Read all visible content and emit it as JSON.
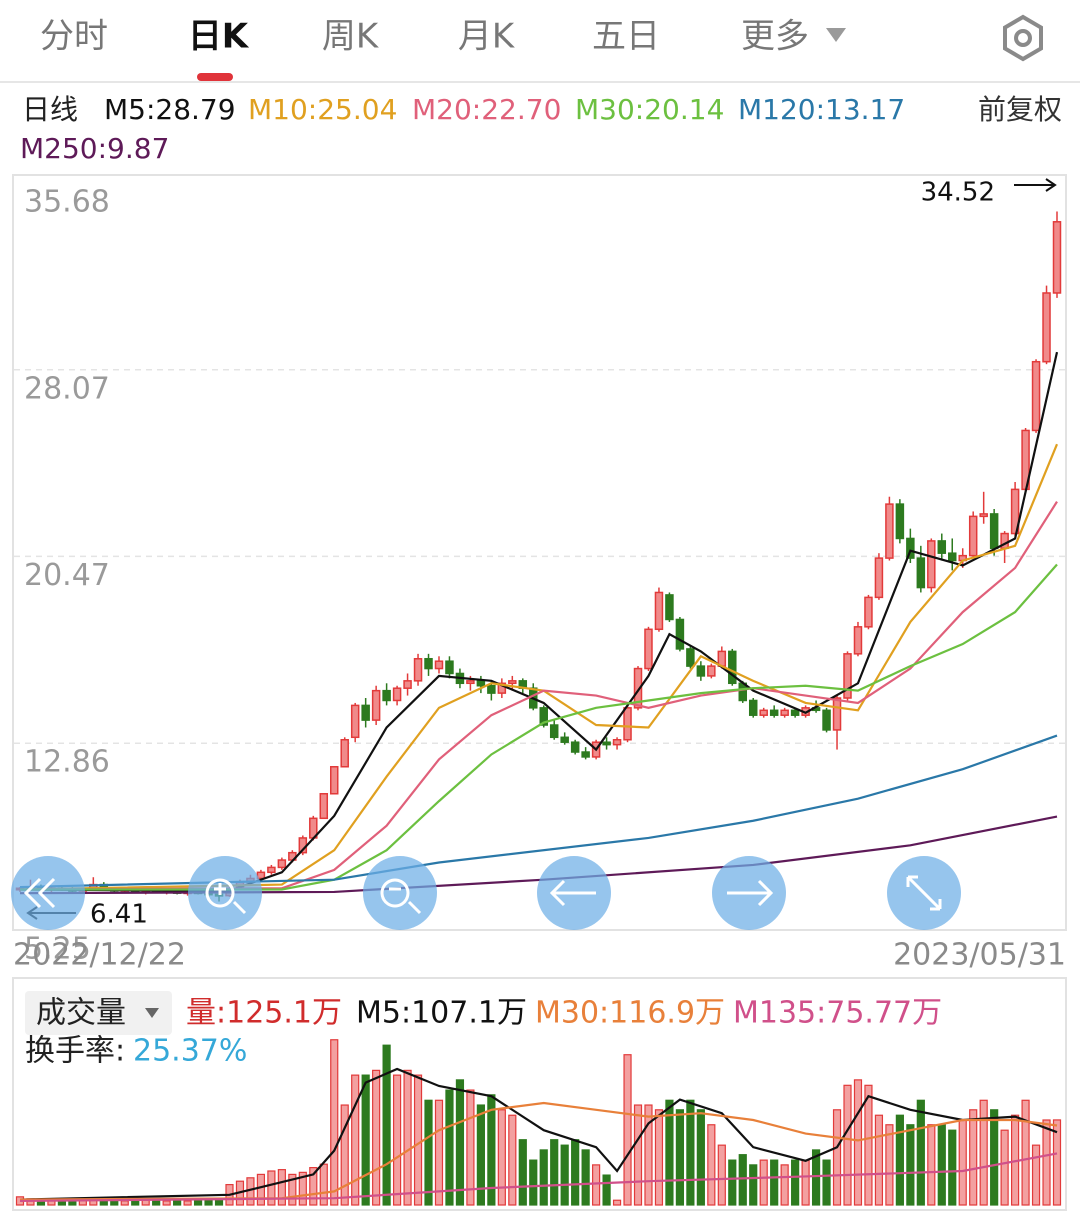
{
  "tabs": [
    "分时",
    "日K",
    "周K",
    "月K",
    "五日",
    "更多"
  ],
  "active_tab": 1,
  "chart_data": [
    {
      "type": "candlestick",
      "title": "日线",
      "adjustment": "前复权",
      "ylim": [
        5.25,
        35.68
      ],
      "yticks": [
        5.25,
        12.86,
        20.47,
        28.07,
        35.68
      ],
      "grid": true,
      "up_color": "#e23a3a",
      "down_color": "#2d7a1f",
      "date_labels": [
        "2022/12/22",
        "2023/05/31"
      ],
      "ohlc": [
        [
          6.9,
          7.0,
          6.8,
          6.95
        ],
        [
          6.95,
          7.3,
          6.9,
          7.0
        ],
        [
          7.0,
          7.1,
          6.85,
          6.9
        ],
        [
          6.9,
          7.0,
          6.8,
          6.95
        ],
        [
          6.95,
          7.05,
          6.85,
          6.9
        ],
        [
          6.9,
          7.0,
          6.8,
          6.85
        ],
        [
          6.85,
          6.95,
          6.75,
          6.9
        ],
        [
          6.9,
          7.4,
          6.85,
          7.1
        ],
        [
          7.1,
          7.2,
          6.9,
          6.95
        ],
        [
          6.95,
          7.0,
          6.8,
          6.85
        ],
        [
          6.85,
          6.95,
          6.75,
          6.9
        ],
        [
          6.9,
          7.0,
          6.8,
          6.8
        ],
        [
          6.8,
          6.9,
          6.7,
          6.85
        ],
        [
          6.85,
          6.95,
          6.75,
          6.8
        ],
        [
          6.8,
          6.9,
          6.7,
          6.85
        ],
        [
          6.85,
          6.9,
          6.7,
          6.75
        ],
        [
          6.75,
          6.85,
          6.65,
          6.8
        ],
        [
          6.8,
          6.9,
          6.7,
          6.75
        ],
        [
          6.75,
          6.85,
          6.6,
          6.7
        ],
        [
          6.7,
          6.8,
          6.41,
          6.65
        ],
        [
          6.65,
          7.0,
          6.6,
          6.95
        ],
        [
          6.95,
          7.3,
          6.9,
          7.2
        ],
        [
          7.2,
          7.5,
          7.1,
          7.35
        ],
        [
          7.35,
          7.7,
          7.3,
          7.6
        ],
        [
          7.6,
          7.9,
          7.5,
          7.8
        ],
        [
          7.8,
          8.2,
          7.7,
          8.1
        ],
        [
          8.1,
          8.5,
          8.0,
          8.4
        ],
        [
          8.4,
          9.1,
          8.3,
          9.0
        ],
        [
          9.0,
          9.9,
          8.9,
          9.8
        ],
        [
          9.8,
          10.8,
          9.8,
          10.8
        ],
        [
          10.8,
          11.9,
          10.8,
          11.9
        ],
        [
          11.9,
          13.1,
          11.9,
          13.0
        ],
        [
          13.1,
          14.5,
          12.9,
          14.4
        ],
        [
          14.4,
          14.7,
          13.5,
          13.8
        ],
        [
          13.8,
          15.2,
          13.6,
          15.0
        ],
        [
          15.0,
          15.3,
          14.4,
          14.6
        ],
        [
          14.6,
          15.2,
          14.4,
          15.1
        ],
        [
          15.1,
          15.7,
          14.8,
          15.4
        ],
        [
          15.4,
          16.5,
          15.2,
          16.3
        ],
        [
          16.3,
          16.5,
          15.6,
          15.9
        ],
        [
          15.9,
          16.4,
          15.7,
          16.2
        ],
        [
          16.2,
          16.4,
          15.5,
          15.7
        ],
        [
          15.7,
          15.9,
          15.1,
          15.3
        ],
        [
          15.3,
          15.6,
          15.0,
          15.4
        ],
        [
          15.4,
          15.6,
          14.9,
          15.2
        ],
        [
          15.2,
          15.4,
          14.6,
          14.9
        ],
        [
          14.9,
          15.5,
          14.7,
          15.3
        ],
        [
          15.3,
          15.6,
          15.0,
          15.4
        ],
        [
          15.4,
          15.5,
          14.9,
          15.1
        ],
        [
          15.1,
          15.3,
          14.2,
          14.3
        ],
        [
          14.3,
          14.4,
          13.5,
          13.6
        ],
        [
          13.6,
          13.8,
          13.0,
          13.1
        ],
        [
          13.1,
          13.3,
          12.8,
          12.9
        ],
        [
          12.9,
          13.0,
          12.4,
          12.5
        ],
        [
          12.5,
          12.7,
          12.2,
          12.3
        ],
        [
          12.3,
          13.0,
          12.2,
          12.9
        ],
        [
          12.9,
          13.1,
          12.6,
          12.8
        ],
        [
          12.8,
          13.1,
          12.6,
          13.0
        ],
        [
          13.0,
          14.4,
          12.9,
          14.3
        ],
        [
          14.3,
          16.0,
          14.2,
          15.9
        ],
        [
          15.9,
          17.6,
          15.8,
          17.5
        ],
        [
          17.5,
          19.2,
          17.4,
          19.0
        ],
        [
          18.9,
          19.0,
          17.8,
          17.9
        ],
        [
          17.9,
          18.0,
          16.6,
          16.7
        ],
        [
          16.7,
          16.8,
          15.9,
          16.0
        ],
        [
          16.0,
          16.2,
          15.4,
          15.6
        ],
        [
          15.6,
          16.1,
          15.5,
          16.0
        ],
        [
          16.0,
          16.8,
          15.9,
          16.6
        ],
        [
          16.6,
          16.7,
          15.2,
          15.3
        ],
        [
          15.3,
          15.4,
          14.5,
          14.6
        ],
        [
          14.6,
          14.7,
          13.9,
          14.0
        ],
        [
          14.0,
          14.3,
          13.9,
          14.2
        ],
        [
          14.2,
          14.4,
          13.9,
          14.0
        ],
        [
          14.0,
          14.3,
          13.9,
          14.2
        ],
        [
          14.2,
          14.3,
          13.9,
          14.0
        ],
        [
          14.0,
          14.4,
          13.9,
          14.3
        ],
        [
          14.3,
          14.6,
          14.1,
          14.2
        ],
        [
          14.2,
          14.3,
          13.3,
          13.4
        ],
        [
          13.4,
          14.8,
          12.6,
          14.7
        ],
        [
          14.7,
          16.6,
          14.6,
          16.5
        ],
        [
          16.5,
          17.8,
          16.4,
          17.6
        ],
        [
          17.6,
          18.9,
          17.5,
          18.8
        ],
        [
          18.8,
          20.6,
          18.7,
          20.4
        ],
        [
          20.4,
          22.9,
          20.3,
          22.6
        ],
        [
          22.6,
          22.8,
          21.0,
          21.2
        ],
        [
          21.2,
          21.6,
          20.2,
          20.4
        ],
        [
          20.4,
          20.9,
          19.0,
          19.2
        ],
        [
          19.2,
          21.2,
          19.0,
          21.1
        ],
        [
          21.1,
          21.4,
          20.3,
          20.6
        ],
        [
          20.6,
          21.2,
          19.9,
          20.3
        ],
        [
          20.3,
          20.8,
          20.0,
          20.5
        ],
        [
          20.5,
          22.3,
          20.4,
          22.1
        ],
        [
          22.1,
          23.1,
          21.8,
          22.2
        ],
        [
          22.2,
          22.4,
          20.5,
          20.8
        ],
        [
          20.8,
          21.5,
          20.2,
          21.4
        ],
        [
          21.4,
          23.5,
          21.3,
          23.2
        ],
        [
          23.2,
          25.7,
          23.1,
          25.6
        ],
        [
          25.6,
          28.5,
          25.5,
          28.4
        ],
        [
          28.4,
          31.5,
          28.3,
          31.2
        ],
        [
          31.2,
          34.52,
          31.0,
          34.1
        ]
      ],
      "lines": [
        {
          "name": "M5:28.79",
          "color": "#111111",
          "x": [
            0,
            20,
            25,
            30,
            35,
            40,
            45,
            50,
            55,
            60,
            62,
            65,
            70,
            75,
            80,
            85,
            90,
            95,
            99
          ],
          "values": [
            6.9,
            6.85,
            7.6,
            9.9,
            13.5,
            15.6,
            15.4,
            14.5,
            12.6,
            15.6,
            17.3,
            16.6,
            15.0,
            14.1,
            15.3,
            20.7,
            20.1,
            21.2,
            28.79
          ]
        },
        {
          "name": "M10:25.04",
          "color": "#e0a020",
          "x": [
            0,
            25,
            30,
            35,
            40,
            45,
            50,
            55,
            60,
            65,
            70,
            75,
            80,
            85,
            90,
            95,
            99
          ],
          "values": [
            6.9,
            7.1,
            8.5,
            11.5,
            14.3,
            15.3,
            15.0,
            13.6,
            13.5,
            16.4,
            15.4,
            14.5,
            14.2,
            17.8,
            20.3,
            20.9,
            25.04
          ]
        },
        {
          "name": "M20:22.70",
          "color": "#e0607a",
          "x": [
            0,
            25,
            30,
            35,
            40,
            45,
            50,
            55,
            60,
            65,
            70,
            75,
            80,
            85,
            90,
            95,
            99
          ],
          "values": [
            6.9,
            6.95,
            7.7,
            9.5,
            12.2,
            14.0,
            15.0,
            14.8,
            14.3,
            14.8,
            15.1,
            14.8,
            14.5,
            15.9,
            18.2,
            20.0,
            22.7
          ]
        },
        {
          "name": "M30:20.14",
          "color": "#6cc040",
          "x": [
            0,
            25,
            30,
            35,
            40,
            45,
            50,
            55,
            60,
            65,
            70,
            75,
            80,
            85,
            90,
            95,
            99
          ],
          "values": [
            6.9,
            6.9,
            7.3,
            8.5,
            10.5,
            12.4,
            13.7,
            14.3,
            14.6,
            14.9,
            15.1,
            15.2,
            15.0,
            16.0,
            16.9,
            18.2,
            20.14
          ]
        },
        {
          "name": "M120:13.17",
          "color": "#2a78a8",
          "x": [
            0,
            30,
            40,
            60,
            70,
            80,
            90,
            99
          ],
          "values": [
            7.0,
            7.3,
            8.0,
            9.0,
            9.7,
            10.6,
            11.8,
            13.17
          ]
        },
        {
          "name": "M250:9.87",
          "color": "#5e1a58",
          "x": [
            0,
            30,
            50,
            70,
            85,
            99
          ],
          "values": [
            6.75,
            6.8,
            7.3,
            7.9,
            8.7,
            9.87
          ]
        }
      ]
    },
    {
      "type": "bar",
      "title": "成交量",
      "current_label": "量:125.1万",
      "current_color": "#d02c2c",
      "turnover_label": "换手率:",
      "turnover": "25.37%",
      "turnover_color": "#35a8d8",
      "ylim": [
        0,
        250
      ],
      "values": [
        12,
        9,
        8,
        7,
        6,
        7,
        8,
        10,
        8,
        7,
        6,
        6,
        7,
        6,
        6,
        7,
        6,
        6,
        7,
        8,
        30,
        35,
        40,
        45,
        50,
        52,
        45,
        48,
        55,
        60,
        243,
        147,
        191,
        191,
        198,
        235,
        191,
        198,
        191,
        154,
        154,
        169,
        184,
        169,
        147,
        162,
        140,
        132,
        96,
        66,
        81,
        96,
        88,
        96,
        81,
        59,
        44,
        7,
        221,
        147,
        147,
        140,
        154,
        140,
        154,
        140,
        118,
        88,
        66,
        74,
        59,
        66,
        66,
        59,
        66,
        66,
        81,
        66,
        140,
        176,
        184,
        176,
        132,
        118,
        132,
        118,
        154,
        118,
        118,
        110,
        125,
        140,
        154,
        140,
        110,
        132,
        154,
        88,
        125,
        125.1
      ],
      "lines": [
        {
          "name": "M5:107.1万",
          "color": "#111111",
          "x": [
            0,
            20,
            28,
            30,
            33,
            36,
            40,
            45,
            50,
            55,
            57,
            60,
            63,
            67,
            70,
            75,
            78,
            81,
            85,
            90,
            95,
            99
          ],
          "values": [
            8,
            15,
            45,
            80,
            180,
            200,
            175,
            160,
            110,
            85,
            50,
            120,
            155,
            135,
            85,
            65,
            85,
            160,
            140,
            125,
            130,
            107.1
          ]
        },
        {
          "name": "M30:116.9万",
          "color": "#e8803a",
          "x": [
            0,
            25,
            30,
            35,
            40,
            45,
            50,
            55,
            60,
            65,
            70,
            75,
            80,
            85,
            90,
            95,
            99
          ],
          "values": [
            8,
            10,
            20,
            60,
            110,
            140,
            150,
            140,
            130,
            135,
            125,
            105,
            95,
            110,
            125,
            125,
            116.9
          ]
        },
        {
          "name": "M135:75.77万",
          "color": "#d0508a",
          "x": [
            0,
            30,
            45,
            60,
            75,
            90,
            99
          ],
          "values": [
            6,
            10,
            25,
            35,
            42,
            50,
            75.77
          ]
        }
      ]
    }
  ]
}
